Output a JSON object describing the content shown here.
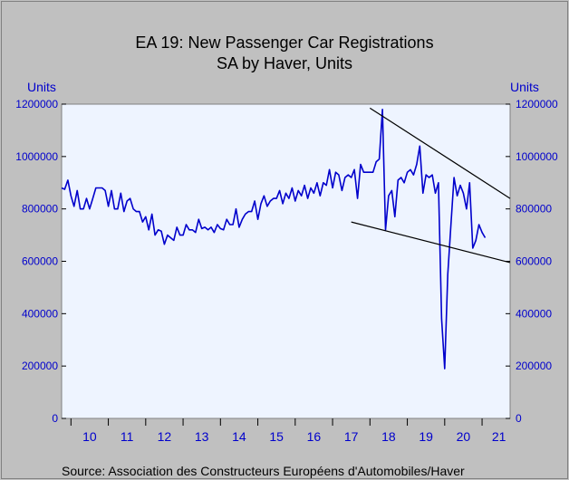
{
  "chart_data": {
    "type": "line",
    "title": "EA 19: New Passenger Car Registrations",
    "subtitle": "SA by Haver, Units",
    "ylabel_left": "Units",
    "ylabel_right": "Units",
    "source": "Source:  Association des Constructeurs Européens d'Automobiles/Haver",
    "ylim": [
      0,
      1200000
    ],
    "yticks": [
      {
        "value": 0,
        "label": "0"
      },
      {
        "value": 200000,
        "label": "200000"
      },
      {
        "value": 400000,
        "label": "400000"
      },
      {
        "value": 600000,
        "label": "600000"
      },
      {
        "value": 800000,
        "label": "800000"
      },
      {
        "value": 1000000,
        "label": "1000000"
      },
      {
        "value": 1200000,
        "label": "1200000"
      }
    ],
    "xlim": [
      2009.75,
      2021.75
    ],
    "xticks": [
      {
        "year": 2010,
        "label": "10"
      },
      {
        "year": 2011,
        "label": "11"
      },
      {
        "year": 2012,
        "label": "12"
      },
      {
        "year": 2013,
        "label": "13"
      },
      {
        "year": 2014,
        "label": "14"
      },
      {
        "year": 2015,
        "label": "15"
      },
      {
        "year": 2016,
        "label": "16"
      },
      {
        "year": 2017,
        "label": "17"
      },
      {
        "year": 2018,
        "label": "18"
      },
      {
        "year": 2019,
        "label": "19"
      },
      {
        "year": 2020,
        "label": "20"
      },
      {
        "year": 2021,
        "label": "21"
      }
    ],
    "grid": false,
    "legend": "none",
    "series_color": "#0000cc",
    "trendline_color": "#000000",
    "plot_bg": "#eef4ff",
    "series": [
      {
        "start": "2009-10",
        "frequency": "monthly",
        "values": [
          880000,
          875000,
          910000,
          850000,
          810000,
          870000,
          800000,
          800000,
          840000,
          800000,
          840000,
          880000,
          880000,
          880000,
          870000,
          810000,
          870000,
          800000,
          800000,
          860000,
          790000,
          830000,
          840000,
          800000,
          790000,
          790000,
          750000,
          770000,
          720000,
          780000,
          700000,
          720000,
          715000,
          665000,
          700000,
          690000,
          680000,
          730000,
          700000,
          700000,
          740000,
          720000,
          720000,
          710000,
          760000,
          725000,
          730000,
          720000,
          730000,
          710000,
          740000,
          725000,
          720000,
          760000,
          740000,
          740000,
          800000,
          730000,
          760000,
          780000,
          790000,
          790000,
          830000,
          760000,
          820000,
          850000,
          810000,
          830000,
          840000,
          840000,
          870000,
          820000,
          860000,
          840000,
          880000,
          830000,
          870000,
          850000,
          890000,
          840000,
          880000,
          860000,
          900000,
          850000,
          900000,
          890000,
          950000,
          880000,
          940000,
          930000,
          870000,
          920000,
          930000,
          920000,
          950000,
          840000,
          970000,
          940000,
          940000,
          940000,
          940000,
          980000,
          990000,
          1180000,
          720000,
          850000,
          870000,
          770000,
          910000,
          920000,
          900000,
          940000,
          950000,
          930000,
          970000,
          1040000,
          860000,
          930000,
          920000,
          930000,
          860000,
          900000,
          380000,
          190000,
          550000,
          740000,
          920000,
          850000,
          890000,
          860000,
          800000,
          900000,
          650000,
          680000,
          740000,
          710000,
          690000
        ]
      }
    ],
    "trendlines": [
      {
        "from": {
          "x": 2018.0,
          "y": 1185000
        },
        "to": {
          "x": 2021.75,
          "y": 840000
        }
      },
      {
        "from": {
          "x": 2017.5,
          "y": 750000
        },
        "to": {
          "x": 2021.75,
          "y": 595000
        }
      }
    ]
  }
}
